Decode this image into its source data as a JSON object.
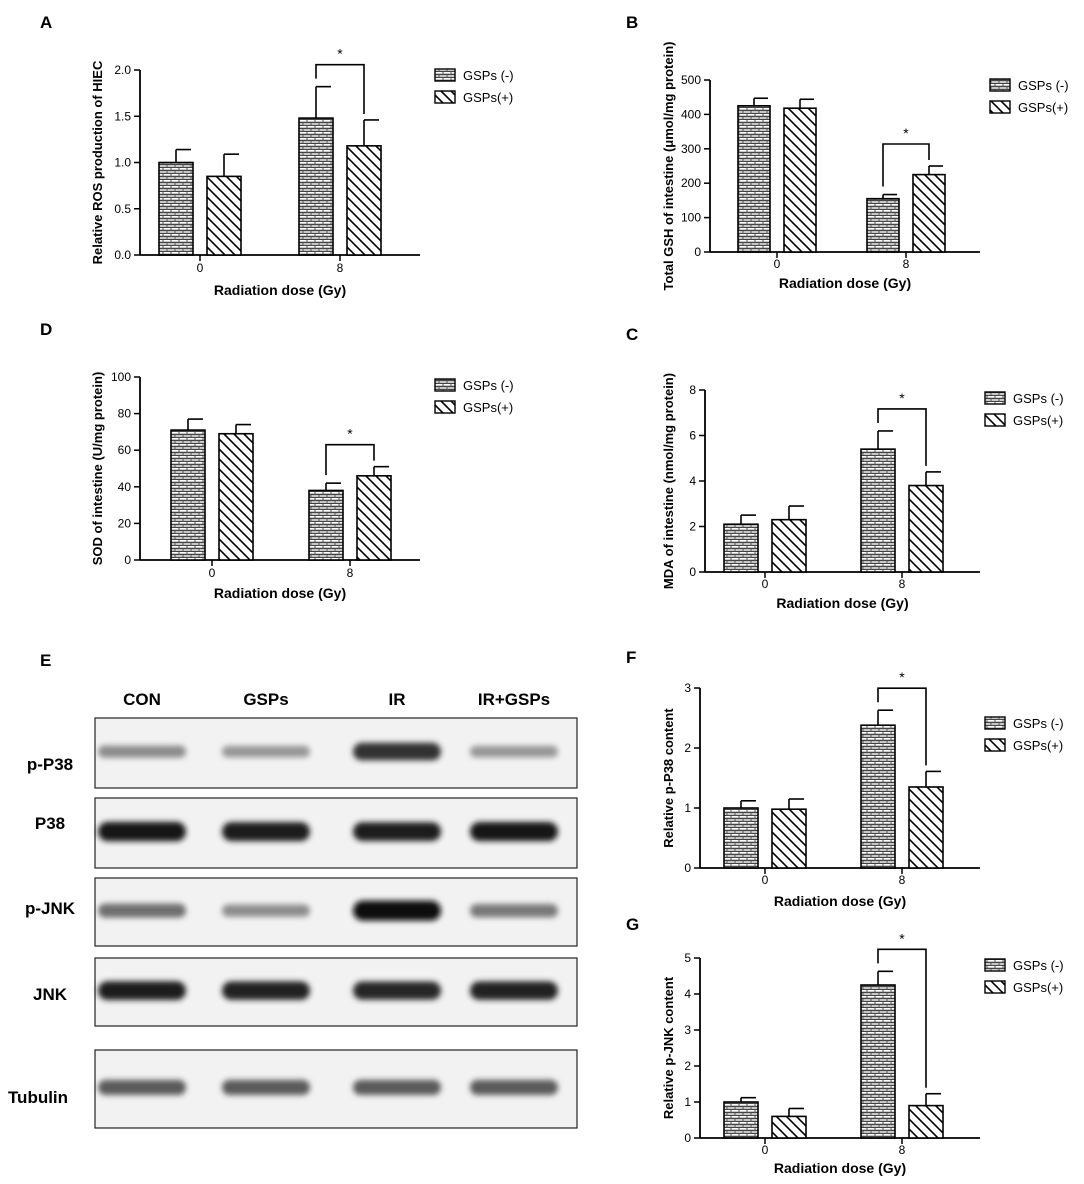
{
  "legend": {
    "minus": "GSPs (-)",
    "plus": "GSPs(+)"
  },
  "chart_data": [
    {
      "panel": "A",
      "type": "bar",
      "categories": [
        "0",
        "8"
      ],
      "series": [
        {
          "name": "GSPs (-)",
          "values": [
            1.0,
            1.48
          ],
          "errors": [
            0.14,
            0.34
          ]
        },
        {
          "name": "GSPs(+)",
          "values": [
            0.85,
            1.18
          ],
          "errors": [
            0.24,
            0.28
          ]
        }
      ],
      "xlabel": "Radiation dose (Gy)",
      "ylabel": "Relative ROS production of  HIEC",
      "ylim": [
        0,
        2.0
      ],
      "ticks": [
        "0.0",
        "0.5",
        "1.0",
        "1.5",
        "2.0"
      ],
      "significance": "*",
      "legend_position": "right"
    },
    {
      "panel": "B",
      "type": "bar",
      "categories": [
        "0",
        "8"
      ],
      "series": [
        {
          "name": "GSPs (-)",
          "values": [
            425,
            155
          ],
          "errors": [
            22,
            12
          ]
        },
        {
          "name": "GSPs(+)",
          "values": [
            418,
            225
          ],
          "errors": [
            26,
            25
          ]
        }
      ],
      "xlabel": "Radiation dose (Gy)",
      "ylabel": "Total GSH of  intestine (μmol/mg protein)",
      "ylim": [
        0,
        500
      ],
      "ticks": [
        "0",
        "100",
        "200",
        "300",
        "400",
        "500"
      ],
      "significance": "*",
      "legend_position": "right"
    },
    {
      "panel": "D",
      "type": "bar",
      "categories": [
        "0",
        "8"
      ],
      "series": [
        {
          "name": "GSPs (-)",
          "values": [
            71,
            38
          ],
          "errors": [
            6,
            4
          ]
        },
        {
          "name": "GSPs(+)",
          "values": [
            69,
            46
          ],
          "errors": [
            5,
            5
          ]
        }
      ],
      "xlabel": "Radiation dose (Gy)",
      "ylabel": "SOD of intestine (U/mg protein)",
      "ylim": [
        0,
        100
      ],
      "ticks": [
        "0",
        "20",
        "40",
        "60",
        "80",
        "100"
      ],
      "significance": "*",
      "legend_position": "right"
    },
    {
      "panel": "C",
      "type": "bar",
      "categories": [
        "0",
        "8"
      ],
      "series": [
        {
          "name": "GSPs (-)",
          "values": [
            2.1,
            5.4
          ],
          "errors": [
            0.4,
            0.8
          ]
        },
        {
          "name": "GSPs(+)",
          "values": [
            2.3,
            3.8
          ],
          "errors": [
            0.6,
            0.6
          ]
        }
      ],
      "xlabel": "Radiation dose (Gy)",
      "ylabel": "MDA of  intestine (nmol/mg protein)",
      "ylim": [
        0,
        8
      ],
      "ticks": [
        "0",
        "2",
        "4",
        "6",
        "8"
      ],
      "significance": "*",
      "legend_position": "right"
    },
    {
      "panel": "F",
      "type": "bar",
      "categories": [
        "0",
        "8"
      ],
      "series": [
        {
          "name": "GSPs (-)",
          "values": [
            1.0,
            2.38
          ],
          "errors": [
            0.12,
            0.25
          ]
        },
        {
          "name": "GSPs(+)",
          "values": [
            0.98,
            1.35
          ],
          "errors": [
            0.17,
            0.26
          ]
        }
      ],
      "xlabel": "Radiation dose (Gy)",
      "ylabel": "Relative p-P38 content",
      "ylim": [
        0,
        3
      ],
      "ticks": [
        "0",
        "1",
        "2",
        "3"
      ],
      "significance": "*",
      "legend_position": "right"
    },
    {
      "panel": "G",
      "type": "bar",
      "categories": [
        "0",
        "8"
      ],
      "series": [
        {
          "name": "GSPs (-)",
          "values": [
            1.0,
            4.25
          ],
          "errors": [
            0.12,
            0.38
          ]
        },
        {
          "name": "GSPs(+)",
          "values": [
            0.6,
            0.9
          ],
          "errors": [
            0.22,
            0.33
          ]
        }
      ],
      "xlabel": "Radiation dose (Gy)",
      "ylabel": "Relative p-JNK content",
      "ylim": [
        0,
        5
      ],
      "ticks": [
        "0",
        "1",
        "2",
        "3",
        "4",
        "5"
      ],
      "significance": "*",
      "legend_position": "right"
    }
  ],
  "blot": {
    "panel": "E",
    "lanes": [
      "CON",
      "GSPs",
      "IR",
      "IR+GSPs"
    ],
    "rows": [
      {
        "label": "p-P38",
        "intensity": [
          0.35,
          0.3,
          0.8,
          0.3
        ]
      },
      {
        "label": "P38",
        "intensity": [
          0.95,
          0.92,
          0.9,
          0.93
        ]
      },
      {
        "label": "p-JNK",
        "intensity": [
          0.5,
          0.35,
          1.0,
          0.45
        ]
      },
      {
        "label": "JNK",
        "intensity": [
          0.9,
          0.88,
          0.85,
          0.88
        ]
      },
      {
        "label": "Tubulin",
        "intensity": [
          0.6,
          0.6,
          0.6,
          0.6
        ]
      }
    ]
  }
}
